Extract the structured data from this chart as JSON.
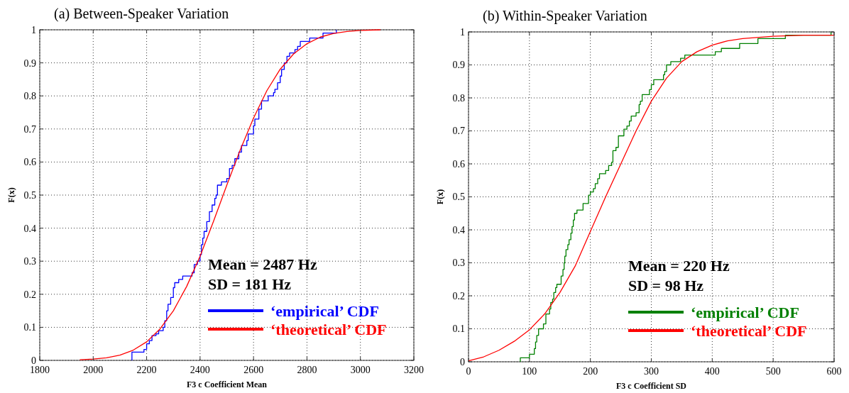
{
  "chart_data": [
    {
      "type": "line",
      "title": "(a)   Between-Speaker Variation",
      "xlabel": "F3 c Coefficient Mean",
      "ylabel": "F(x)",
      "xlim": [
        1800,
        3200
      ],
      "xticks": [
        1800,
        2000,
        2200,
        2400,
        2600,
        2800,
        3000,
        3200
      ],
      "ylim": [
        0,
        1
      ],
      "yticks": [
        0,
        0.1,
        0.2,
        0.3,
        0.4,
        0.5,
        0.6,
        0.7,
        0.8,
        0.9,
        1
      ],
      "grid": true,
      "legend": "bottom right",
      "annotations": [
        "Mean = 2487 Hz",
        "SD = 181 Hz"
      ],
      "series": [
        {
          "name": "‘empirical’ CDF",
          "type": "step",
          "color": "#0000ff",
          "x": [
            2145,
            2145,
            2190,
            2200,
            2210,
            2220,
            2235,
            2245,
            2262,
            2268,
            2275,
            2280,
            2290,
            2300,
            2305,
            2320,
            2335,
            2370,
            2378,
            2390,
            2400,
            2405,
            2410,
            2415,
            2425,
            2435,
            2445,
            2455,
            2460,
            2465,
            2480,
            2500,
            2510,
            2520,
            2530,
            2545,
            2555,
            2575,
            2580,
            2600,
            2605,
            2620,
            2630,
            2655,
            2675,
            2680,
            2690,
            2700,
            2705,
            2715,
            2725,
            2735,
            2755,
            2765,
            2775,
            2810,
            2860,
            2910
          ],
          "values": [
            0,
            0.025,
            0.033,
            0.05,
            0.06,
            0.075,
            0.08,
            0.09,
            0.1,
            0.12,
            0.15,
            0.17,
            0.19,
            0.22,
            0.235,
            0.245,
            0.255,
            0.265,
            0.29,
            0.3,
            0.32,
            0.35,
            0.37,
            0.39,
            0.42,
            0.45,
            0.47,
            0.49,
            0.5,
            0.53,
            0.54,
            0.55,
            0.58,
            0.59,
            0.61,
            0.63,
            0.65,
            0.665,
            0.685,
            0.71,
            0.73,
            0.76,
            0.785,
            0.8,
            0.81,
            0.82,
            0.84,
            0.86,
            0.88,
            0.9,
            0.92,
            0.93,
            0.94,
            0.95,
            0.965,
            0.975,
            0.99,
            1
          ]
        },
        {
          "name": "‘theoretical’ CDF",
          "type": "line",
          "color": "#ff0000",
          "x": [
            1950,
            2000,
            2050,
            2100,
            2150,
            2200,
            2250,
            2300,
            2350,
            2400,
            2450,
            2500,
            2550,
            2600,
            2650,
            2700,
            2750,
            2800,
            2850,
            2900,
            2950,
            3000,
            3075
          ],
          "values": [
            0.002,
            0.004,
            0.008,
            0.016,
            0.031,
            0.056,
            0.095,
            0.15,
            0.224,
            0.315,
            0.42,
            0.53,
            0.636,
            0.733,
            0.816,
            0.881,
            0.927,
            0.958,
            0.978,
            0.989,
            0.995,
            0.998,
            1
          ]
        }
      ]
    },
    {
      "type": "line",
      "title": "(b)   Within-Speaker Variation",
      "xlabel": "F3 c Coefficient SD",
      "ylabel": "F(x)",
      "xlim": [
        0,
        600
      ],
      "xticks": [
        0,
        100,
        200,
        300,
        400,
        500,
        600
      ],
      "ylim": [
        0,
        1
      ],
      "yticks": [
        0,
        0.1,
        0.2,
        0.3,
        0.4,
        0.5,
        0.6,
        0.7,
        0.8,
        0.9,
        1
      ],
      "grid": true,
      "legend": "bottom right",
      "annotations": [
        "Mean = 220 Hz",
        "SD = 98 Hz"
      ],
      "series": [
        {
          "name": "‘empirical’ CDF",
          "type": "step",
          "color": "#008000",
          "x": [
            85,
            85,
            100,
            108,
            110,
            112,
            115,
            123,
            127,
            133,
            135,
            138,
            140,
            143,
            145,
            152,
            155,
            157,
            158,
            160,
            163,
            165,
            168,
            170,
            172,
            174,
            178,
            188,
            197,
            200,
            205,
            208,
            212,
            215,
            225,
            230,
            235,
            237,
            242,
            246,
            255,
            260,
            264,
            267,
            275,
            280,
            282,
            285,
            297,
            300,
            304,
            320,
            322,
            325,
            332,
            348,
            355,
            405,
            415,
            445,
            475,
            520,
            595
          ],
          "values": [
            0,
            0.012,
            0.023,
            0.04,
            0.06,
            0.08,
            0.1,
            0.115,
            0.145,
            0.16,
            0.18,
            0.19,
            0.21,
            0.225,
            0.235,
            0.26,
            0.28,
            0.3,
            0.32,
            0.34,
            0.355,
            0.37,
            0.39,
            0.41,
            0.43,
            0.45,
            0.46,
            0.48,
            0.505,
            0.515,
            0.525,
            0.54,
            0.555,
            0.57,
            0.58,
            0.595,
            0.605,
            0.64,
            0.65,
            0.685,
            0.705,
            0.715,
            0.73,
            0.745,
            0.755,
            0.78,
            0.79,
            0.81,
            0.825,
            0.84,
            0.855,
            0.87,
            0.88,
            0.9,
            0.91,
            0.92,
            0.93,
            0.94,
            0.95,
            0.965,
            0.98,
            0.99,
            1
          ]
        },
        {
          "name": "‘theoretical’ CDF",
          "type": "line",
          "color": "#ff0000",
          "x": [
            0,
            25,
            50,
            75,
            100,
            125,
            150,
            175,
            200,
            225,
            250,
            275,
            300,
            325,
            350,
            375,
            400,
            425,
            450,
            500,
            550,
            600
          ],
          "values": [
            0.003,
            0.015,
            0.035,
            0.062,
            0.097,
            0.145,
            0.21,
            0.29,
            0.395,
            0.5,
            0.6,
            0.7,
            0.79,
            0.86,
            0.91,
            0.94,
            0.96,
            0.973,
            0.98,
            0.987,
            0.99,
            0.99
          ]
        }
      ]
    }
  ]
}
